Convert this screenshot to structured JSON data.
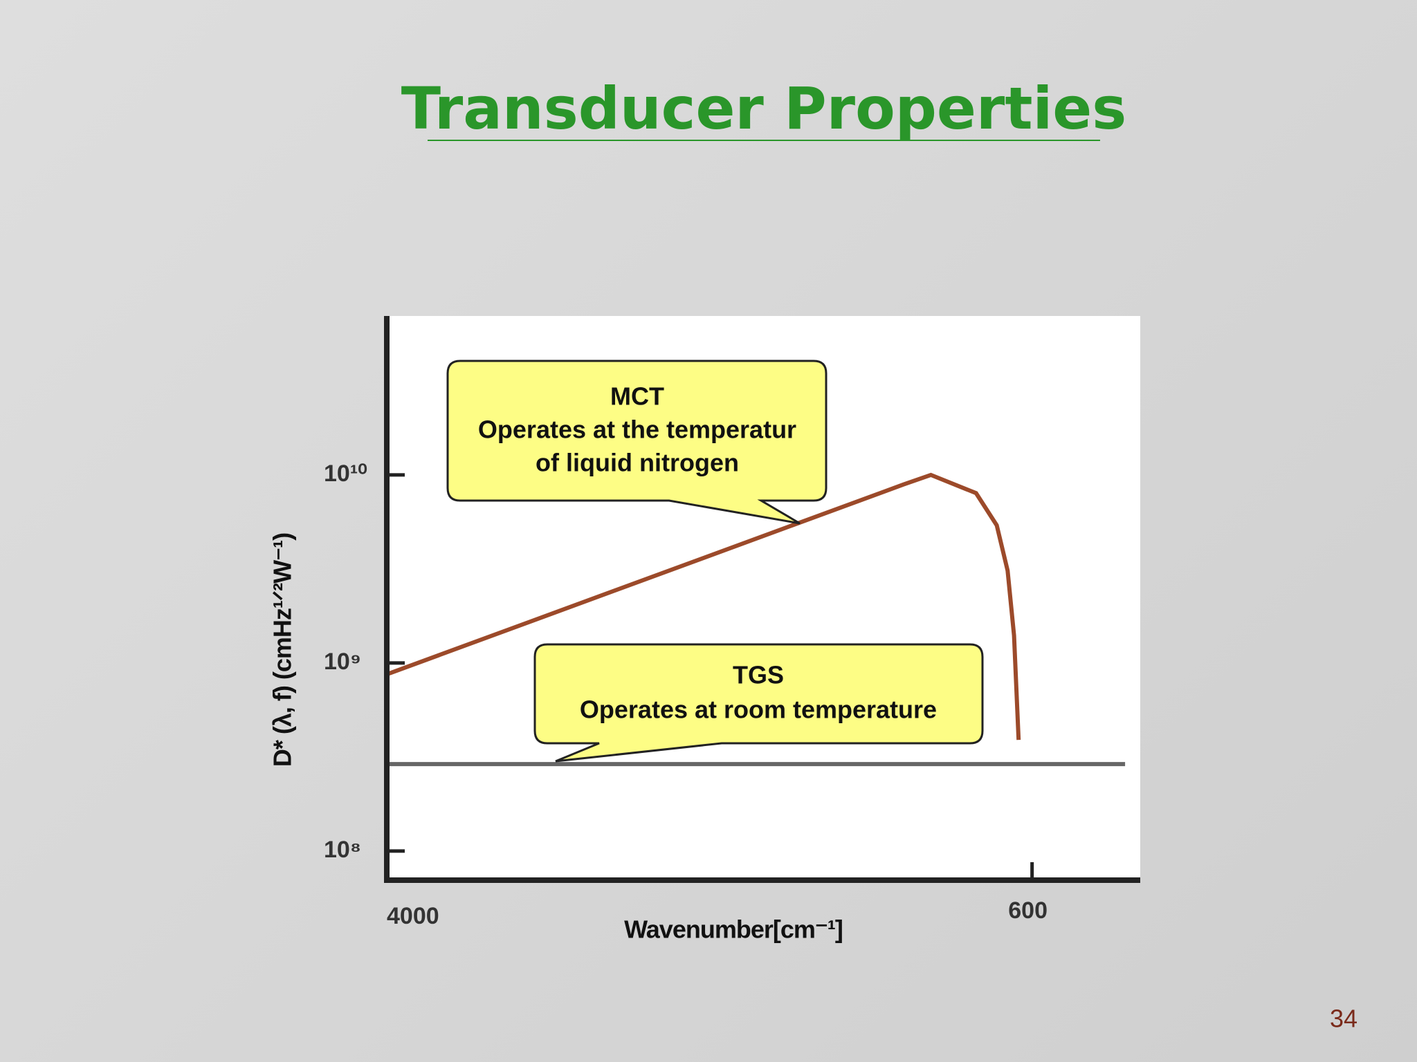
{
  "slide": {
    "title": "Transducer Properties",
    "page_number": "34"
  },
  "chart_data": {
    "type": "line",
    "x_label": "Wavenumber[cm⁻¹]",
    "y_label": "D* (λ,  f) (cmHz¹ᐟ²W⁻¹)",
    "xlim": [
      4000,
      30
    ],
    "xticks": [
      4000,
      600
    ],
    "ylim": [
      70000000,
      70000000000
    ],
    "ylog": true,
    "yticks": [
      {
        "value": 100000000,
        "label": "10⁸"
      },
      {
        "value": 1000000000,
        "label": "10⁹"
      },
      {
        "value": 10000000000,
        "label": "10¹⁰"
      }
    ],
    "series": [
      {
        "name": "MCT",
        "color": "#9c4a2a",
        "x": [
          4000,
          1276,
          1133,
          895,
          786,
          729,
          695,
          671
        ],
        "values": [
          870000000,
          8900000000,
          10000000000,
          8000000000,
          5400000000,
          3100000000,
          1400000000,
          390000000
        ]
      },
      {
        "name": "TGS",
        "color": "#666666",
        "x": [
          4000,
          110
        ],
        "values": [
          290000000,
          290000000
        ]
      }
    ],
    "annotations": [
      {
        "lines": [
          "MCT",
          "Operates at the temperatur",
          "of liquid nitrogen"
        ]
      },
      {
        "lines": [
          "TGS",
          "Operates at room temperature"
        ]
      }
    ]
  }
}
